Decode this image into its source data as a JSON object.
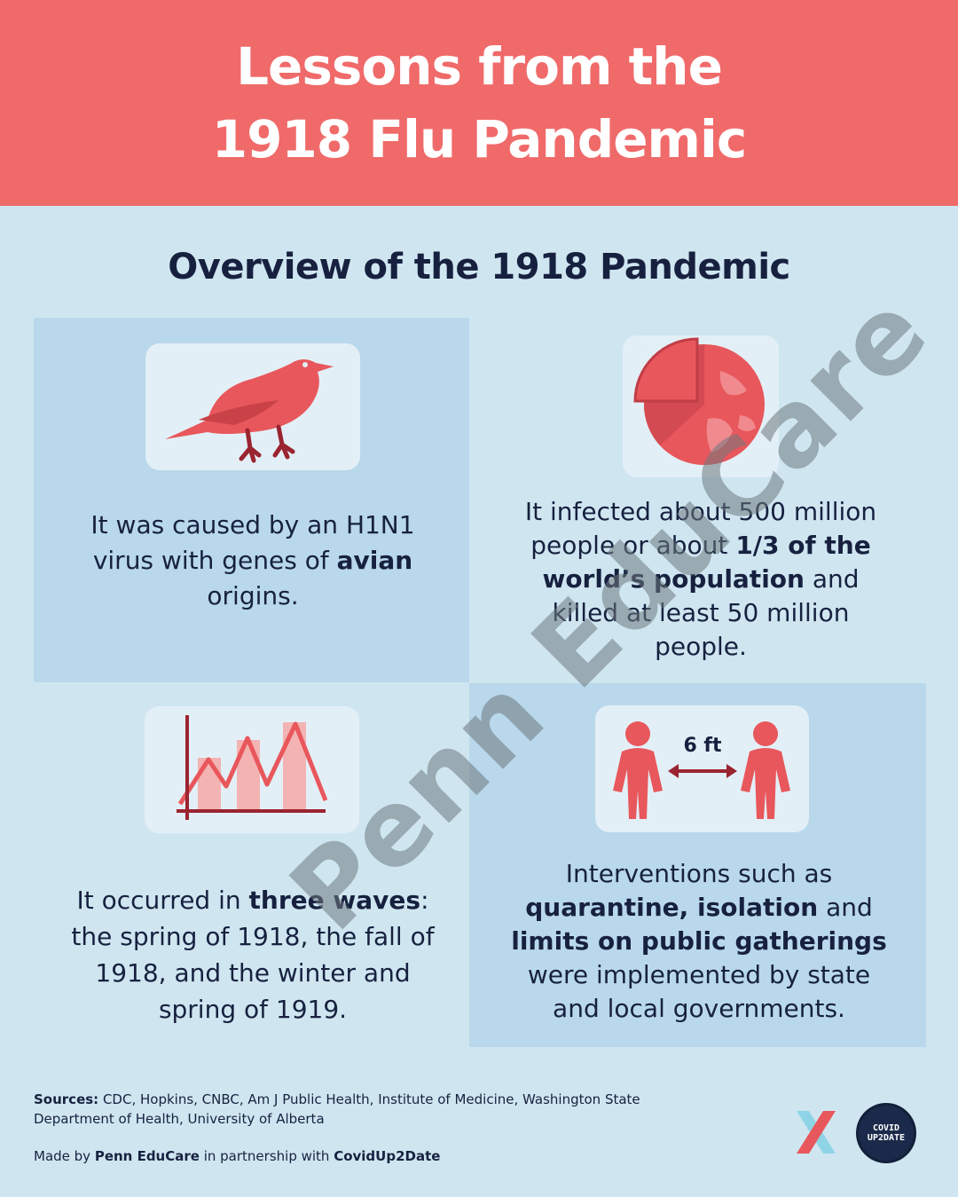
{
  "header": {
    "title_line1": "Lessons from the",
    "title_line2": "1918 Flu Pandemic"
  },
  "subtitle": "Overview of the 1918 Pandemic",
  "cards": {
    "cause": {
      "pre": "It was caused by an H1N1 virus with genes of ",
      "bold": "avian",
      "post": " origins.",
      "icon": "bird-icon"
    },
    "infected": {
      "pre": "It infected about  500 million people or about ",
      "bold": "1/3 of the world’s population",
      "post": " and killed at least 50 million people.",
      "icon": "globe-pie-icon"
    },
    "waves": {
      "pre": "It occurred in ",
      "bold": "three waves",
      "post": ": the spring of 1918, the fall of 1918, and the winter and spring of 1919.",
      "icon": "wave-chart-icon"
    },
    "interventions": {
      "pre": "Interventions such as ",
      "bold1": "quarantine, isolation",
      "mid": " and ",
      "bold2": "limits on public gatherings",
      "post": " were implemented by state and local governments.",
      "icon": "social-distance-icon",
      "distance_label": "6 ft"
    }
  },
  "footer": {
    "sources_label": "Sources:",
    "sources_text": " CDC, Hopkins, CNBC, Am J Public Health, Institute of Medicine, Washington State Department of Health, University of Alberta",
    "made_pre": "Made by ",
    "made_org": "Penn EduCare",
    "made_mid": " in partnership with ",
    "made_partner": "CovidUp2Date",
    "logo_covid_line1": "COVID",
    "logo_covid_line2": "UP2DATE"
  },
  "watermark": "Penn EduCare",
  "colors": {
    "header": "#f06a6a",
    "background": "#cfe6f1",
    "panel": "#b9d8eb",
    "icon_red": "#e8575c",
    "text": "#17213f"
  }
}
